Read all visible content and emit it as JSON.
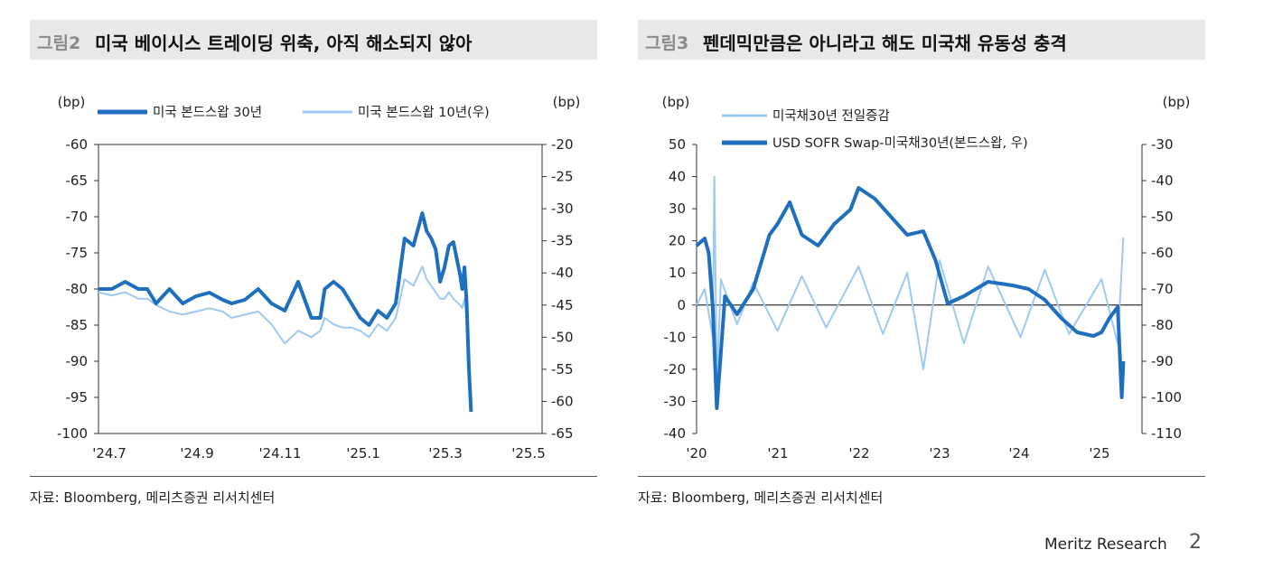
{
  "footer": {
    "brand": "Meritz Research",
    "page": "2"
  },
  "chart_data": [
    {
      "type": "line",
      "figure_no": "그림2",
      "title": "미국 베이시스 트레이딩 위축, 아직 해소되지 않아",
      "source": "자료: Bloomberg, 메리츠증권 리서치센터",
      "unit_left": "(bp)",
      "unit_right": "(bp)",
      "ylim_left": [
        -100,
        -60
      ],
      "ylim_right": [
        -65,
        -20
      ],
      "y_ticks_left": [
        "-60",
        "-65",
        "-70",
        "-75",
        "-80",
        "-85",
        "-90",
        "-95",
        "-100"
      ],
      "y_ticks_right": [
        "-20",
        "-25",
        "-30",
        "-35",
        "-40",
        "-45",
        "-50",
        "-55",
        "-60",
        "-65"
      ],
      "x_ticks": [
        "'24.7",
        "'24.9",
        "'24.11",
        "'25.1",
        "'25.3",
        "'25.5"
      ],
      "legend_position": "top",
      "series": [
        {
          "name": "미국 본드스왑 30년",
          "axis": "left",
          "color": "#1f6fbf",
          "x": [
            0,
            0.3,
            0.6,
            0.9,
            1.1,
            1.3,
            1.6,
            1.9,
            2.2,
            2.5,
            2.8,
            3.0,
            3.3,
            3.6,
            3.9,
            4.2,
            4.5,
            4.8,
            5.0,
            5.1,
            5.3,
            5.5,
            5.7,
            5.9,
            6.1,
            6.3,
            6.5,
            6.7,
            6.9,
            7.1,
            7.3,
            7.4,
            7.5,
            7.6,
            7.7,
            7.8,
            7.9,
            8.0,
            8.15,
            8.2,
            8.25,
            8.3,
            8.35,
            8.4
          ],
          "values": [
            -80,
            -80,
            -79,
            -80,
            -80,
            -82,
            -80,
            -82,
            -81,
            -80.5,
            -81.5,
            -82,
            -81.5,
            -80,
            -82,
            -83,
            -79,
            -84,
            -84,
            -80,
            -79,
            -80,
            -82,
            -84,
            -85,
            -83,
            -84,
            -82,
            -73,
            -74,
            -69.5,
            -72,
            -73,
            -74.5,
            -79,
            -77,
            -74,
            -73.5,
            -78,
            -80,
            -77,
            -82,
            -91,
            -97
          ]
        },
        {
          "name": "미국 본드스왑 10년(우)",
          "axis": "right",
          "color": "#9ec9f2",
          "x": [
            0,
            0.3,
            0.6,
            0.9,
            1.1,
            1.3,
            1.6,
            1.9,
            2.2,
            2.5,
            2.8,
            3.0,
            3.3,
            3.6,
            3.9,
            4.2,
            4.5,
            4.8,
            5.0,
            5.1,
            5.3,
            5.5,
            5.7,
            5.9,
            6.1,
            6.3,
            6.5,
            6.7,
            6.9,
            7.1,
            7.3,
            7.4,
            7.5,
            7.6,
            7.7,
            7.8,
            7.9,
            8.0,
            8.15,
            8.2,
            8.25,
            8.3,
            8.35,
            8.4
          ],
          "values": [
            -43,
            -43.5,
            -43,
            -44,
            -44,
            -45,
            -46,
            -46.5,
            -46,
            -45.5,
            -46,
            -47,
            -46.5,
            -46,
            -48,
            -51,
            -49,
            -50,
            -49,
            -47,
            -48,
            -48.5,
            -48.5,
            -49,
            -50,
            -48,
            -49,
            -47,
            -41,
            -42,
            -39,
            -41,
            -42,
            -43,
            -44,
            -44,
            -43,
            -44,
            -45,
            -45.5,
            -44,
            -47,
            -56,
            -61
          ]
        }
      ]
    },
    {
      "type": "line",
      "figure_no": "그림3",
      "title": "펜데믹만큼은 아니라고 해도 미국채 유동성 충격",
      "source": "자료: Bloomberg, 메리츠증권 리서치센터",
      "unit_left": "(bp)",
      "unit_right": "(bp)",
      "ylim_left": [
        -40,
        50
      ],
      "ylim_right": [
        -110,
        -30
      ],
      "y_ticks_left": [
        "50",
        "40",
        "30",
        "20",
        "10",
        "0",
        "-10",
        "-20",
        "-30",
        "-40"
      ],
      "y_ticks_right": [
        "-30",
        "-40",
        "-50",
        "-60",
        "-70",
        "-80",
        "-90",
        "-100",
        "-110"
      ],
      "x_ticks": [
        "'20",
        "'21",
        "'22",
        "'23",
        "'24",
        "'25"
      ],
      "legend_position": "top",
      "series": [
        {
          "name": "미국채30년 전일증감",
          "axis": "left",
          "color": "#9ec9f2",
          "x": [
            2020.0,
            2020.1,
            2020.2,
            2020.22,
            2020.25,
            2020.3,
            2020.5,
            2020.7,
            2021.0,
            2021.3,
            2021.6,
            2022.0,
            2022.3,
            2022.6,
            2022.8,
            2023.0,
            2023.3,
            2023.6,
            2024.0,
            2024.3,
            2024.6,
            2025.0,
            2025.2,
            2025.27
          ],
          "values": [
            0,
            5,
            -10,
            40,
            -25,
            8,
            -6,
            7,
            -8,
            9,
            -7,
            12,
            -9,
            10,
            -20,
            14,
            -12,
            12,
            -10,
            11,
            -9,
            8,
            -12,
            21
          ]
        },
        {
          "name": "USD SOFR Swap-미국채30년(본드스왑, 우)",
          "axis": "right",
          "color": "#1f6fbf",
          "x": [
            2020.0,
            2020.1,
            2020.15,
            2020.2,
            2020.25,
            2020.35,
            2020.5,
            2020.7,
            2020.9,
            2021.0,
            2021.15,
            2021.3,
            2021.5,
            2021.7,
            2021.9,
            2022.0,
            2022.2,
            2022.4,
            2022.6,
            2022.8,
            2022.95,
            2023.1,
            2023.3,
            2023.6,
            2023.9,
            2024.1,
            2024.3,
            2024.5,
            2024.7,
            2024.9,
            2025.0,
            2025.1,
            2025.2,
            2025.25,
            2025.27
          ],
          "values": [
            -58,
            -56,
            -60,
            -75,
            -103,
            -72,
            -77,
            -70,
            -55,
            -52,
            -46,
            -55,
            -58,
            -52,
            -48,
            -42,
            -45,
            -50,
            -55,
            -54,
            -62,
            -74,
            -72,
            -68,
            -69,
            -70,
            -73,
            -78,
            -82,
            -83,
            -82,
            -78,
            -75,
            -100,
            -90
          ]
        }
      ]
    }
  ]
}
